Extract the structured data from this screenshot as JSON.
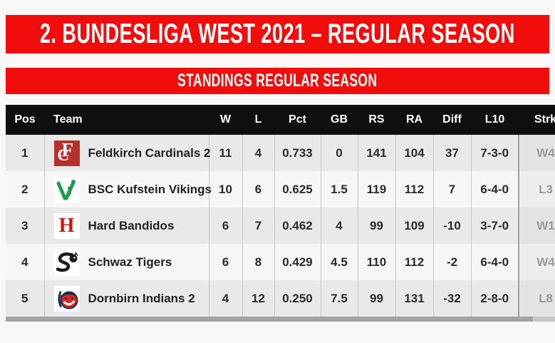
{
  "title_banner": "2. BUNDESLIGA WEST 2021 – REGULAR SEASON",
  "subtitle_banner": "STANDINGS REGULAR SEASON",
  "colors": {
    "banner_red": "#f20d0d",
    "header_black": "#0f0f0f",
    "row_odd_bg": "#e9e9e9",
    "row_even_bg": "#f6f6f6",
    "streak_text": "#9a9a9a",
    "cardinals_red": "#b5322a",
    "vikings_green": "#1c9e4e",
    "bandidos_red": "#d31216",
    "indians_red": "#d5281e",
    "indians_navy": "#1c2c54"
  },
  "standings": {
    "columns": [
      "Pos",
      "Team",
      "W",
      "L",
      "Pct",
      "GB",
      "RS",
      "RA",
      "Diff",
      "L10",
      "Strk"
    ],
    "rows": [
      {
        "pos": "1",
        "team": "Feldkirch Cardinals 2",
        "logo": "feldkirch-cardinals-logo",
        "w": "11",
        "l": "4",
        "pct": "0.733",
        "gb": "0",
        "rs": "141",
        "ra": "104",
        "diff": "37",
        "l10": "7-3-0",
        "strk": "W4"
      },
      {
        "pos": "2",
        "team": "BSC Kufstein Vikings",
        "logo": "kufstein-vikings-logo",
        "w": "10",
        "l": "6",
        "pct": "0.625",
        "gb": "1.5",
        "rs": "119",
        "ra": "112",
        "diff": "7",
        "l10": "6-4-0",
        "strk": "L3"
      },
      {
        "pos": "3",
        "team": "Hard Bandidos",
        "logo": "hard-bandidos-logo",
        "w": "6",
        "l": "7",
        "pct": "0.462",
        "gb": "4",
        "rs": "99",
        "ra": "109",
        "diff": "-10",
        "l10": "3-7-0",
        "strk": "W1"
      },
      {
        "pos": "4",
        "team": "Schwaz Tigers",
        "logo": "schwaz-tigers-logo",
        "w": "6",
        "l": "8",
        "pct": "0.429",
        "gb": "4.5",
        "rs": "110",
        "ra": "112",
        "diff": "-2",
        "l10": "6-4-0",
        "strk": "W4"
      },
      {
        "pos": "5",
        "team": "Dornbirn Indians 2",
        "logo": "dornbirn-indians-logo",
        "w": "4",
        "l": "12",
        "pct": "0.250",
        "gb": "7.5",
        "rs": "99",
        "ra": "131",
        "diff": "-32",
        "l10": "2-8-0",
        "strk": "L8"
      }
    ]
  }
}
